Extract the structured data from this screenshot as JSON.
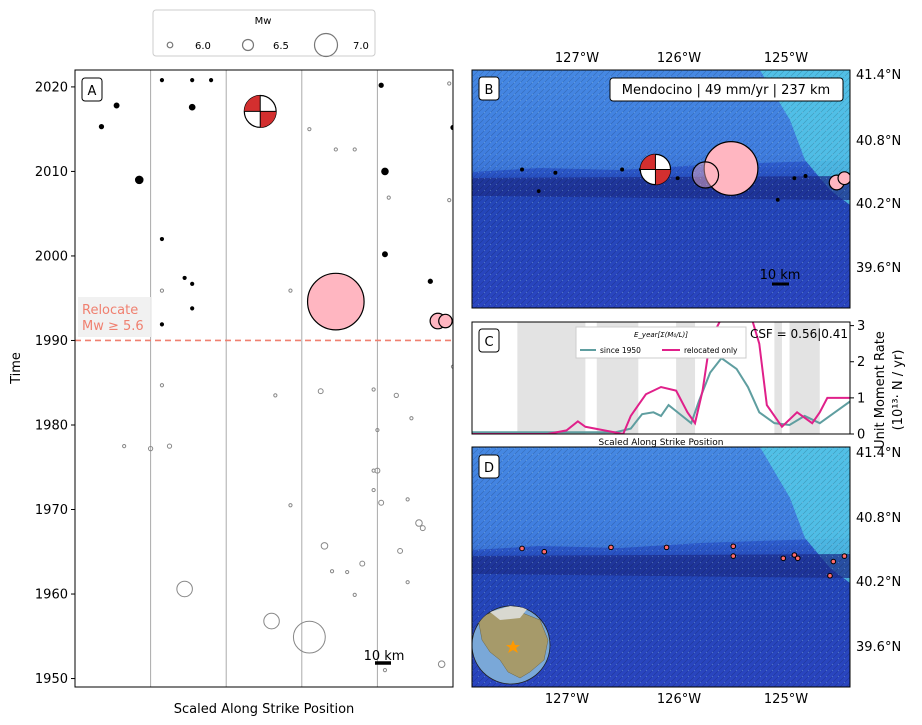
{
  "legend": {
    "title": "Mw",
    "entries": [
      {
        "label": "6.0",
        "mw": 6.0
      },
      {
        "label": "6.5",
        "mw": 6.5
      },
      {
        "label": "7.0",
        "mw": 7.0
      }
    ]
  },
  "panel_a": {
    "tag": "A",
    "ylabel": "Time",
    "xlabel": "Scaled Along Strike Position",
    "relocate_label_1": "Relocate",
    "relocate_label_2": "Mw ≥ 5.6",
    "scalebar": "10 km"
  },
  "panel_b": {
    "tag": "B",
    "info": "Mendocino | 49 mm/yr | 237 km",
    "scalebar": "10 km"
  },
  "panel_c": {
    "tag": "C",
    "ylabel_1": "Unit Moment Rate",
    "ylabel_2": "(10¹³· N / yr)",
    "csf": "CSF = 0.56|0.41",
    "legend_title": "E_year[Σ(M₀/L)]",
    "xlabel": "Scaled Along Strike Position"
  },
  "panel_d": {
    "tag": "D"
  },
  "map_axes": {
    "lon_labels": [
      "127°W",
      "126°W",
      "125°W"
    ],
    "lat_labels": [
      "41.4°N",
      "40.8°N",
      "40.2°N",
      "39.6°N"
    ]
  },
  "colors": {
    "relocate_line": "#f08070",
    "since1950": "#5f9ea0",
    "relocated": "#e0208a",
    "event_fill": "#ffb6c1",
    "ocean_deep": "#2f4cc8",
    "shelf": "#4fc3e8"
  },
  "chart_data": [
    {
      "panel": "A",
      "type": "scatter",
      "xlabel": "Scaled Along Strike Position",
      "ylabel": "Time",
      "ylim": [
        1949,
        2022
      ],
      "yticks": [
        1950,
        1960,
        1970,
        1980,
        1990,
        2000,
        2010,
        2020
      ],
      "relocate_threshold_year": 1990,
      "points": [
        {
          "x": 0.07,
          "y": 2015.3,
          "mw": 5.2
        },
        {
          "x": 0.11,
          "y": 2017.8,
          "mw": 5.3
        },
        {
          "x": 0.17,
          "y": 2009.0,
          "mw": 5.6
        },
        {
          "x": 0.23,
          "y": 1991.9,
          "mw": 5.0
        },
        {
          "x": 0.31,
          "y": 2017.6,
          "mw": 5.4
        },
        {
          "x": 0.49,
          "y": 2016.5,
          "mw": 5.3
        },
        {
          "x": 0.81,
          "y": 2020.2,
          "mw": 5.2
        },
        {
          "x": 0.82,
          "y": 2010.0,
          "mw": 5.5
        },
        {
          "x": 0.82,
          "y": 2000.2,
          "mw": 5.3
        },
        {
          "x": 0.94,
          "y": 1997.0,
          "mw": 5.2
        },
        {
          "x": 1.0,
          "y": 2015.2,
          "mw": 5.2
        },
        {
          "x": 0.31,
          "y": 1996.7,
          "mw": 5.0
        },
        {
          "x": 0.29,
          "y": 1997.4,
          "mw": 5.0
        },
        {
          "x": 0.31,
          "y": 1993.8,
          "mw": 5.0
        },
        {
          "x": 0.23,
          "y": 2002.0,
          "mw": 5.0
        },
        {
          "x": 0.23,
          "y": 2020.8,
          "mw": 5.0
        },
        {
          "x": 0.31,
          "y": 2020.8,
          "mw": 5.0
        },
        {
          "x": 0.36,
          "y": 2020.8,
          "mw": 5.0
        }
      ],
      "relocated_events": [
        {
          "x": 0.49,
          "y": 2017.1,
          "mw": 6.6,
          "focal": true
        },
        {
          "x": 0.69,
          "y": 1994.6,
          "mw": 7.0
        },
        {
          "x": 0.96,
          "y": 1992.3,
          "mw": 6.1
        },
        {
          "x": 0.98,
          "y": 1992.3,
          "mw": 6.0
        }
      ],
      "catalog_points": [
        {
          "x": 0.29,
          "y": 1960.6,
          "mw": 6.1
        },
        {
          "x": 0.52,
          "y": 1956.8,
          "mw": 6.1
        },
        {
          "x": 0.62,
          "y": 1954.9,
          "mw": 6.6
        },
        {
          "x": 0.66,
          "y": 1965.7,
          "mw": 5.5
        },
        {
          "x": 0.91,
          "y": 1968.4,
          "mw": 5.5
        },
        {
          "x": 0.92,
          "y": 1967.8,
          "mw": 5.3
        },
        {
          "x": 0.81,
          "y": 1970.8,
          "mw": 5.3
        },
        {
          "x": 0.8,
          "y": 1974.6,
          "mw": 5.3
        },
        {
          "x": 0.86,
          "y": 1965.1,
          "mw": 5.3
        },
        {
          "x": 0.76,
          "y": 1963.6,
          "mw": 5.3
        },
        {
          "x": 0.97,
          "y": 1951.7,
          "mw": 5.5
        },
        {
          "x": 0.65,
          "y": 1984.0,
          "mw": 5.3
        },
        {
          "x": 0.85,
          "y": 1983.5,
          "mw": 5.2
        },
        {
          "x": 0.2,
          "y": 1977.2,
          "mw": 5.2
        },
        {
          "x": 0.25,
          "y": 1977.5,
          "mw": 5.2
        },
        {
          "x": 0.13,
          "y": 1977.5,
          "mw": 5.0
        },
        {
          "x": 0.23,
          "y": 1984.7,
          "mw": 5.0
        },
        {
          "x": 0.53,
          "y": 1983.5,
          "mw": 5.0
        },
        {
          "x": 0.89,
          "y": 1980.8,
          "mw": 5.0
        },
        {
          "x": 0.79,
          "y": 1984.2,
          "mw": 5.0
        },
        {
          "x": 0.79,
          "y": 1974.6,
          "mw": 5.0
        },
        {
          "x": 0.79,
          "y": 1972.3,
          "mw": 5.0
        },
        {
          "x": 0.88,
          "y": 1971.2,
          "mw": 5.0
        },
        {
          "x": 0.57,
          "y": 1970.5,
          "mw": 5.0
        },
        {
          "x": 0.23,
          "y": 1995.9,
          "mw": 5.0
        },
        {
          "x": 0.68,
          "y": 1962.7,
          "mw": 5.0
        },
        {
          "x": 0.72,
          "y": 1962.6,
          "mw": 5.0
        },
        {
          "x": 0.74,
          "y": 1959.9,
          "mw": 5.0
        },
        {
          "x": 0.88,
          "y": 1961.4,
          "mw": 5.0
        },
        {
          "x": 0.8,
          "y": 1979.4,
          "mw": 5.0
        },
        {
          "x": 0.57,
          "y": 1995.9,
          "mw": 5.0
        },
        {
          "x": 0.69,
          "y": 2012.6,
          "mw": 5.0
        },
        {
          "x": 0.74,
          "y": 2012.6,
          "mw": 5.0
        },
        {
          "x": 0.62,
          "y": 2015.0,
          "mw": 5.0
        },
        {
          "x": 0.83,
          "y": 2006.9,
          "mw": 5.0
        },
        {
          "x": 0.99,
          "y": 2020.4,
          "mw": 5.0
        },
        {
          "x": 0.99,
          "y": 2006.6,
          "mw": 5.0
        },
        {
          "x": 0.82,
          "y": 1951.0,
          "mw": 5.0
        },
        {
          "x": 1.0,
          "y": 1986.9,
          "mw": 5.0
        }
      ]
    },
    {
      "panel": "C",
      "type": "line",
      "xlabel": "Scaled Along Strike Position",
      "ylabel": "Unit Moment Rate (10^13 · N / yr)",
      "ylim": [
        0,
        3.1
      ],
      "yticks": [
        0,
        1,
        2,
        3
      ],
      "shaded_ranges": [
        [
          0.12,
          0.3
        ],
        [
          0.33,
          0.44
        ],
        [
          0.54,
          0.59
        ],
        [
          0.8,
          0.82
        ],
        [
          0.84,
          0.92
        ]
      ],
      "series": [
        {
          "name": "since 1950",
          "x": [
            0.0,
            0.1,
            0.2,
            0.3,
            0.38,
            0.42,
            0.45,
            0.48,
            0.5,
            0.52,
            0.55,
            0.58,
            0.6,
            0.63,
            0.66,
            0.7,
            0.73,
            0.76,
            0.8,
            0.84,
            0.88,
            0.92,
            0.96,
            1.0
          ],
          "values": [
            0.05,
            0.05,
            0.05,
            0.05,
            0.05,
            0.15,
            0.55,
            0.6,
            0.5,
            0.8,
            0.55,
            0.3,
            0.9,
            1.7,
            2.1,
            1.8,
            1.3,
            0.6,
            0.3,
            0.25,
            0.5,
            0.3,
            0.6,
            0.9
          ]
        },
        {
          "name": "relocated only",
          "x": [
            0.0,
            0.1,
            0.2,
            0.25,
            0.28,
            0.3,
            0.35,
            0.4,
            0.42,
            0.44,
            0.46,
            0.5,
            0.54,
            0.57,
            0.59,
            0.61,
            0.63,
            0.66,
            0.7,
            0.74,
            0.76,
            0.78,
            0.82,
            0.86,
            0.9,
            0.92,
            0.94,
            0.97,
            1.0
          ],
          "values": [
            0.0,
            0.0,
            0.0,
            0.1,
            0.35,
            0.2,
            0.1,
            0.0,
            0.5,
            0.8,
            1.1,
            1.3,
            1.2,
            0.6,
            0.3,
            1.2,
            2.6,
            3.2,
            3.2,
            3.2,
            2.5,
            0.8,
            0.2,
            0.6,
            0.3,
            0.6,
            1.0,
            1.0,
            1.0
          ]
        }
      ]
    },
    {
      "panel": "B",
      "type": "scatter",
      "xlabel": "Longitude",
      "ylabel": "Latitude",
      "xlim": [
        -127.9,
        -124.5
      ],
      "ylim": [
        39.2,
        41.4
      ],
      "points": [
        {
          "lon": -127.45,
          "lat": 40.48,
          "mw": 5.2
        },
        {
          "lon": -127.15,
          "lat": 40.45,
          "mw": 5.2
        },
        {
          "lon": -126.55,
          "lat": 40.48,
          "mw": 5.2
        },
        {
          "lon": -126.38,
          "lat": 40.48,
          "mw": 5.2
        },
        {
          "lon": -126.05,
          "lat": 40.4,
          "mw": 5.2
        },
        {
          "lon": -125.0,
          "lat": 40.4,
          "mw": 5.2
        },
        {
          "lon": -124.9,
          "lat": 40.42,
          "mw": 5.2
        },
        {
          "lon": -127.3,
          "lat": 40.28,
          "mw": 5.0
        },
        {
          "lon": -125.15,
          "lat": 40.2,
          "mw": 5.0
        }
      ],
      "relocated_events": [
        {
          "lon": -126.25,
          "lat": 40.48,
          "mw": 6.6,
          "focal": true
        },
        {
          "lon": -125.57,
          "lat": 40.49,
          "mw": 7.0
        },
        {
          "lon": -125.8,
          "lat": 40.43,
          "mw": 6.5
        },
        {
          "lon": -124.62,
          "lat": 40.36,
          "mw": 6.1
        },
        {
          "lon": -124.55,
          "lat": 40.4,
          "mw": 6.0
        }
      ]
    },
    {
      "panel": "D",
      "type": "scatter",
      "xlabel": "Longitude",
      "ylabel": "Latitude",
      "xlim": [
        -127.9,
        -124.5
      ],
      "ylim": [
        39.2,
        41.4
      ],
      "points": [
        {
          "lon": -127.45,
          "lat": 40.47,
          "mw": 5.5
        },
        {
          "lon": -127.25,
          "lat": 40.44,
          "mw": 5.5
        },
        {
          "lon": -126.65,
          "lat": 40.48,
          "mw": 5.5
        },
        {
          "lon": -126.15,
          "lat": 40.48,
          "mw": 5.5
        },
        {
          "lon": -125.55,
          "lat": 40.49,
          "mw": 5.5
        },
        {
          "lon": -125.55,
          "lat": 40.4,
          "mw": 5.5
        },
        {
          "lon": -125.1,
          "lat": 40.38,
          "mw": 5.5
        },
        {
          "lon": -125.0,
          "lat": 40.41,
          "mw": 5.5
        },
        {
          "lon": -124.97,
          "lat": 40.38,
          "mw": 5.5
        },
        {
          "lon": -124.65,
          "lat": 40.35,
          "mw": 5.5
        },
        {
          "lon": -124.55,
          "lat": 40.4,
          "mw": 5.5
        },
        {
          "lon": -124.68,
          "lat": 40.22,
          "mw": 5.5
        }
      ]
    }
  ]
}
